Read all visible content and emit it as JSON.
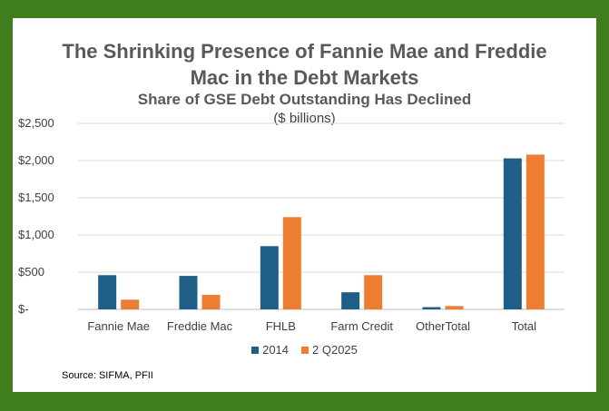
{
  "chart_data": {
    "type": "bar",
    "title_line1": "The Shrinking Presence of Fannie Mae and Freddie",
    "title_line2": "Mac in the Debt Markets",
    "subtitle": "Share of GSE Debt Outstanding Has Declined",
    "units": "($ billions)",
    "categories": [
      "Fannie Mae",
      "Freddie Mac",
      "FHLB",
      "Farm Credit",
      "OtherTotal",
      "Total"
    ],
    "series": [
      {
        "name": "2014",
        "color": "#1f5f87",
        "values": [
          460,
          450,
          850,
          230,
          30,
          2030
        ]
      },
      {
        "name": "2 Q2025",
        "color": "#ed7d31",
        "values": [
          130,
          195,
          1240,
          460,
          45,
          2080
        ]
      }
    ],
    "ylim": [
      0,
      2500
    ],
    "yticks": [
      0,
      500,
      1000,
      1500,
      2000,
      2500
    ],
    "ytick_labels": [
      "$-",
      "$500",
      "$1,000",
      "$1,500",
      "$2,000",
      "$2,500"
    ],
    "grid": true,
    "legend_position": "bottom",
    "source": "Source: SIFMA, PFII"
  }
}
